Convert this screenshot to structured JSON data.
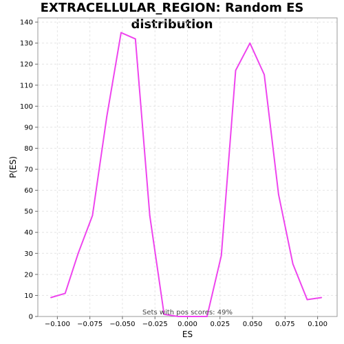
{
  "chart_data": {
    "type": "line",
    "title": "EXTRACELLULAR_REGION: Random ES distribution",
    "xlabel": "ES",
    "ylabel": "P(ES)",
    "xlim": [
      -0.115,
      0.115
    ],
    "ylim": [
      0,
      142
    ],
    "xticks": [
      -0.1,
      -0.075,
      -0.05,
      -0.025,
      0.0,
      0.025,
      0.05,
      0.075,
      0.1
    ],
    "xtick_labels": [
      "−0.100",
      "−0.075",
      "−0.050",
      "−0.025",
      "0.000",
      "0.025",
      "0.050",
      "0.075",
      "0.100"
    ],
    "yticks": [
      0,
      10,
      20,
      30,
      40,
      50,
      60,
      70,
      80,
      90,
      100,
      110,
      120,
      130,
      140
    ],
    "grid": true,
    "line_color": "#ee44ee",
    "annotation": "Sets with pos scores: 49%",
    "series": [
      {
        "x": [
          -0.105,
          -0.094,
          -0.084,
          -0.073,
          -0.062,
          -0.051,
          -0.04,
          -0.029,
          -0.018,
          -0.007,
          0.004,
          0.015,
          0.026,
          0.037,
          0.048,
          0.059,
          0.07,
          0.081,
          0.092,
          0.103
        ],
        "y": [
          9,
          11,
          30,
          48,
          95,
          135,
          132,
          48,
          1,
          0,
          0,
          0,
          29,
          117,
          130,
          115,
          58,
          25,
          8,
          9
        ]
      }
    ]
  }
}
